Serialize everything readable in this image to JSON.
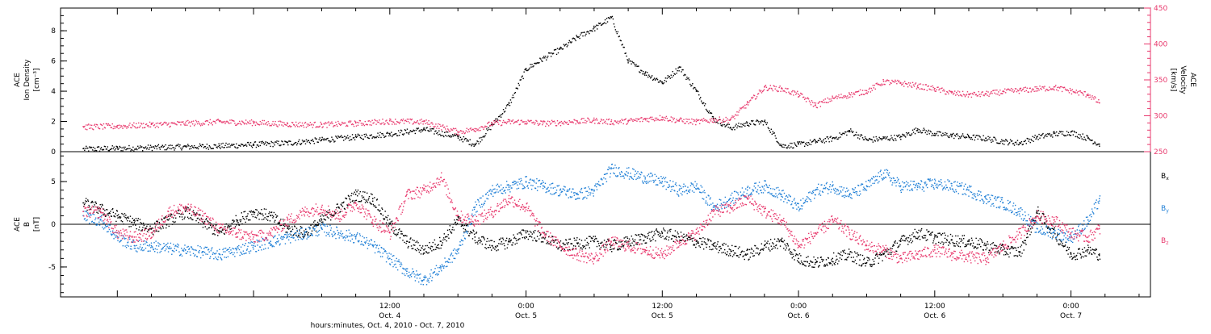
{
  "chart_data": [
    {
      "type": "scatter",
      "panel": "top",
      "ylabel_lines": [
        "ACE",
        "Ion Density",
        "[cm⁻³]"
      ],
      "y2label_lines": [
        "ACE",
        "Velocity",
        "[km/s]"
      ],
      "ylim": [
        0,
        9.5
      ],
      "y2lim": [
        250,
        450
      ],
      "yticks": [
        0,
        2,
        4,
        6,
        8
      ],
      "y2ticks": [
        250,
        300,
        350,
        400,
        450
      ],
      "xlim": [
        -17,
        79
      ],
      "series": [
        {
          "color": "#000000",
          "axis": "left",
          "x": [
            -15,
            -12,
            -9,
            -6,
            -3,
            0,
            3,
            6,
            9,
            12,
            15,
            18,
            19.5,
            21,
            22.5,
            24,
            25.5,
            27,
            28.5,
            30,
            31.5,
            33,
            34.5,
            36,
            37.5,
            39,
            40.5,
            42,
            43.5,
            45,
            46.5,
            48,
            49.5,
            51,
            52.5,
            54,
            55.5,
            57,
            58.5,
            60,
            61.5,
            63,
            64.5,
            66,
            67.5,
            69,
            70.5,
            72,
            73.5,
            74.5
          ],
          "y": [
            0.2,
            0.25,
            0.3,
            0.35,
            0.4,
            0.5,
            0.6,
            0.8,
            1.0,
            1.2,
            1.5,
            1.0,
            0.5,
            1.8,
            3.2,
            5.5,
            6.2,
            6.8,
            7.6,
            8.2,
            8.9,
            6.0,
            5.2,
            4.6,
            5.6,
            4.0,
            2.2,
            1.6,
            1.9,
            2.0,
            0.4,
            0.5,
            0.7,
            0.9,
            1.4,
            0.8,
            0.9,
            1.0,
            1.5,
            1.2,
            1.1,
            1.0,
            0.9,
            0.7,
            0.6,
            1.0,
            1.2,
            1.3,
            0.9,
            0.5
          ]
        },
        {
          "color": "#e8396d",
          "axis": "right",
          "x": [
            -15,
            -12,
            -9,
            -6,
            -3,
            0,
            3,
            6,
            9,
            12,
            15,
            18,
            19.5,
            21,
            22.5,
            24,
            25.5,
            27,
            28.5,
            30,
            31.5,
            33,
            34.5,
            36,
            37.5,
            39,
            40.5,
            42,
            43.5,
            45,
            46.5,
            48,
            49.5,
            51,
            52.5,
            54,
            55.5,
            57,
            58.5,
            60,
            61.5,
            63,
            64.5,
            66,
            67.5,
            69,
            70.5,
            72,
            73.5,
            74.5
          ],
          "y": [
            285,
            286,
            288,
            290,
            292,
            291,
            289,
            288,
            290,
            293,
            292,
            278,
            282,
            290,
            292,
            292,
            290,
            291,
            293,
            294,
            292,
            293,
            296,
            298,
            294,
            292,
            295,
            295,
            318,
            340,
            338,
            330,
            315,
            325,
            330,
            335,
            348,
            346,
            342,
            338,
            332,
            330,
            331,
            334,
            336,
            338,
            340,
            335,
            330,
            318
          ]
        }
      ]
    },
    {
      "type": "scatter",
      "panel": "bottom",
      "ylabel_lines": [
        "ACE",
        "B",
        "[nT]"
      ],
      "ylim": [
        -8.5,
        8.5
      ],
      "yticks": [
        -5,
        0,
        5
      ],
      "xlim": [
        -17,
        79
      ],
      "xtick_labels": [
        {
          "x": 12,
          "time": "12:00",
          "date": "Oct. 4"
        },
        {
          "x": 24,
          "time": "0:00",
          "date": "Oct. 5"
        },
        {
          "x": 36,
          "time": "12:00",
          "date": "Oct. 5"
        },
        {
          "x": 48,
          "time": "0:00",
          "date": "Oct. 6"
        },
        {
          "x": 60,
          "time": "12:00",
          "date": "Oct. 6"
        },
        {
          "x": 72,
          "time": "0:00",
          "date": "Oct. 7"
        }
      ],
      "xlabel": "hours:minutes, Oct.  4, 2010 - Oct.  7, 2010",
      "legend": [
        {
          "text": "B",
          "sub": "x",
          "color": "#000000"
        },
        {
          "text": "B",
          "sub": "y",
          "color": "#1f7fd6"
        },
        {
          "text": "B",
          "sub": "z",
          "color": "#e8396d"
        }
      ],
      "series": [
        {
          "color": "#000000",
          "x": [
            -15,
            -13.5,
            -12,
            -10.5,
            -9,
            -7.5,
            -6,
            -4.5,
            -3,
            -1.5,
            0,
            1.5,
            3,
            4.5,
            6,
            7.5,
            9,
            10.5,
            12,
            13.5,
            15,
            16.5,
            18,
            19.5,
            21,
            22.5,
            24,
            25.5,
            27,
            28.5,
            30,
            31.5,
            33,
            34.5,
            36,
            37.5,
            39,
            40.5,
            42,
            43.5,
            45,
            46.5,
            48,
            49.5,
            51,
            52.5,
            54,
            55.5,
            57,
            58.5,
            60,
            61.5,
            63,
            64.5,
            66,
            67.5,
            69,
            70.5,
            72,
            73.5,
            74.5
          ],
          "y": [
            2.5,
            1.8,
            1.0,
            0.2,
            -0.5,
            0.5,
            1.5,
            0.3,
            -1.0,
            0.5,
            1.5,
            1.0,
            -0.5,
            -1.0,
            0.5,
            2.0,
            3.5,
            3.0,
            0.0,
            -2.0,
            -3.0,
            -2.0,
            0.5,
            -1.5,
            -2.5,
            -2.0,
            -1.0,
            -1.5,
            -2.5,
            -2.2,
            -2.0,
            -2.5,
            -2.0,
            -1.5,
            -1.0,
            -1.5,
            -2.0,
            -2.5,
            -3.0,
            -3.5,
            -2.5,
            -2.0,
            -4.0,
            -4.5,
            -4.0,
            -3.5,
            -4.5,
            -3.5,
            -2.0,
            -1.0,
            -1.5,
            -1.8,
            -2.0,
            -2.5,
            -3.0,
            -3.2,
            1.5,
            -1.0,
            -3.5,
            -3.0,
            -3.5
          ]
        },
        {
          "color": "#1f7fd6",
          "x": [
            -15,
            -13.5,
            -12,
            -10.5,
            -9,
            -7.5,
            -6,
            -4.5,
            -3,
            -1.5,
            0,
            1.5,
            3,
            4.5,
            6,
            7.5,
            9,
            10.5,
            12,
            13.5,
            15,
            16.5,
            18,
            19.5,
            21,
            22.5,
            24,
            25.5,
            27,
            28.5,
            30,
            31.5,
            33,
            34.5,
            36,
            37.5,
            39,
            40.5,
            42,
            43.5,
            45,
            46.5,
            48,
            49.5,
            51,
            52.5,
            54,
            55.5,
            57,
            58.5,
            60,
            61.5,
            63,
            64.5,
            66,
            67.5,
            69,
            70.5,
            72,
            73.5,
            74.5
          ],
          "y": [
            1.0,
            0.5,
            -1.5,
            -2.5,
            -2.5,
            -2.8,
            -3.0,
            -3.2,
            -3.5,
            -3.0,
            -2.5,
            -2.0,
            -1.5,
            -1.0,
            -0.5,
            -1.0,
            -1.5,
            -2.5,
            -4.0,
            -5.5,
            -6.5,
            -5.0,
            -3.0,
            2.0,
            4.0,
            4.5,
            5.0,
            4.5,
            4.0,
            3.5,
            4.0,
            6.5,
            6.0,
            5.5,
            5.0,
            4.0,
            4.5,
            2.0,
            3.0,
            4.0,
            4.5,
            3.5,
            2.0,
            4.0,
            4.5,
            3.5,
            4.5,
            6.0,
            4.5,
            4.5,
            4.8,
            4.5,
            4.0,
            3.0,
            2.5,
            1.5,
            -0.5,
            -1.0,
            -1.5,
            0.5,
            3.0
          ]
        },
        {
          "color": "#e8396d",
          "x": [
            -15,
            -13.5,
            -12,
            -10.5,
            -9,
            -7.5,
            -6,
            -4.5,
            -3,
            -1.5,
            0,
            1.5,
            3,
            4.5,
            6,
            7.5,
            9,
            10.5,
            12,
            13.5,
            15,
            16.5,
            18,
            19.5,
            21,
            22.5,
            24,
            25.5,
            27,
            28.5,
            30,
            31.5,
            33,
            34.5,
            36,
            37.5,
            39,
            40.5,
            42,
            43.5,
            45,
            46.5,
            48,
            49.5,
            51,
            52.5,
            54,
            55.5,
            57,
            58.5,
            60,
            61.5,
            63,
            64.5,
            66,
            67.5,
            69,
            70.5,
            72,
            73.5,
            74.5
          ],
          "y": [
            1.5,
            1.5,
            -1.0,
            -1.5,
            -1.0,
            1.5,
            2.0,
            1.0,
            -0.5,
            -1.0,
            -1.5,
            -1.0,
            0.5,
            1.5,
            2.0,
            1.0,
            2.5,
            0.5,
            -1.0,
            3.5,
            4.0,
            5.5,
            1.0,
            0.5,
            1.5,
            3.0,
            2.0,
            -1.0,
            -2.5,
            -3.5,
            -4.0,
            -2.0,
            -2.5,
            -3.0,
            -3.5,
            -2.0,
            -1.0,
            1.5,
            2.0,
            3.0,
            1.5,
            0.5,
            -2.5,
            -1.0,
            0.5,
            -1.0,
            -2.5,
            -3.0,
            -4.0,
            -3.5,
            -3.0,
            -3.5,
            -3.8,
            -4.0,
            -2.5,
            -1.0,
            1.0,
            0.5,
            -1.0,
            -1.5,
            -0.5
          ]
        }
      ]
    }
  ]
}
